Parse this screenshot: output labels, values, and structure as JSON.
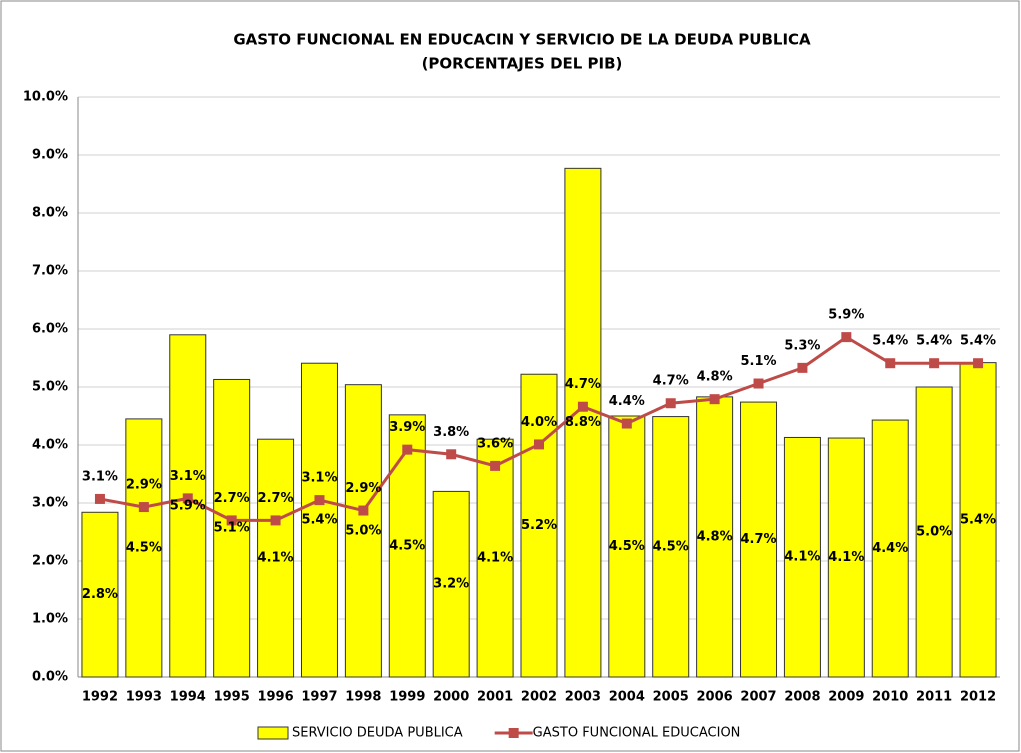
{
  "chart_data": {
    "type": "bar_line",
    "title": "GASTO FUNCIONAL EN EDUCACIN Y SERVICIO DE LA DEUDA PUBLICA",
    "subtitle": "(PORCENTAJES DEL PIB)",
    "categories": [
      "1992",
      "1993",
      "1994",
      "1995",
      "1996",
      "1997",
      "1998",
      "1999",
      "2000",
      "2001",
      "2002",
      "2003",
      "2004",
      "2005",
      "2006",
      "2007",
      "2008",
      "2009",
      "2010",
      "2011",
      "2012"
    ],
    "series": [
      {
        "name": "SERVICIO DEUDA PUBLICA",
        "type": "bar",
        "color": "#ffff00",
        "values": [
          2.84,
          4.45,
          5.9,
          5.13,
          4.1,
          5.41,
          5.04,
          4.52,
          3.2,
          4.1,
          5.22,
          8.77,
          4.5,
          4.49,
          4.83,
          4.74,
          4.13,
          4.12,
          4.43,
          5.0,
          5.42
        ],
        "value_labels": [
          "2.8%",
          "4.5%",
          "5.9%",
          "5.1%",
          "4.1%",
          "5.4%",
          "5.0%",
          "4.5%",
          "3.2%",
          "4.1%",
          "5.2%",
          "8.8%",
          "4.5%",
          "4.5%",
          "4.8%",
          "4.7%",
          "4.1%",
          "4.1%",
          "4.4%",
          "5.0%",
          "5.4%"
        ]
      },
      {
        "name": "GASTO FUNCIONAL EDUCACION",
        "type": "line",
        "color": "#be4b48",
        "values": [
          3.07,
          2.93,
          3.08,
          2.7,
          2.7,
          3.05,
          2.87,
          3.92,
          3.84,
          3.64,
          4.01,
          4.66,
          4.37,
          4.72,
          4.79,
          5.06,
          5.33,
          5.86,
          5.41,
          5.41,
          5.41
        ],
        "value_labels": [
          "3.1%",
          "2.9%",
          "3.1%",
          "2.7%",
          "2.7%",
          "3.1%",
          "2.9%",
          "3.9%",
          "3.8%",
          "3.6%",
          "4.0%",
          "4.7%",
          "4.4%",
          "4.7%",
          "4.8%",
          "5.1%",
          "5.3%",
          "5.9%",
          "5.4%",
          "5.4%",
          "5.4%"
        ]
      }
    ],
    "ylim": [
      0,
      10
    ],
    "yticks": [
      {
        "value": 0,
        "label": "0.0%"
      },
      {
        "value": 1,
        "label": "1.0%"
      },
      {
        "value": 2,
        "label": "2.0%"
      },
      {
        "value": 3,
        "label": "3.0%"
      },
      {
        "value": 4,
        "label": "4.0%"
      },
      {
        "value": 5,
        "label": "5.0%"
      },
      {
        "value": 6,
        "label": "6.0%"
      },
      {
        "value": 7,
        "label": "7.0%"
      },
      {
        "value": 8,
        "label": "8.0%"
      },
      {
        "value": 9,
        "label": "9.0%"
      },
      {
        "value": 10,
        "label": "10.0%"
      }
    ],
    "grid": true,
    "legend": "bottom"
  }
}
